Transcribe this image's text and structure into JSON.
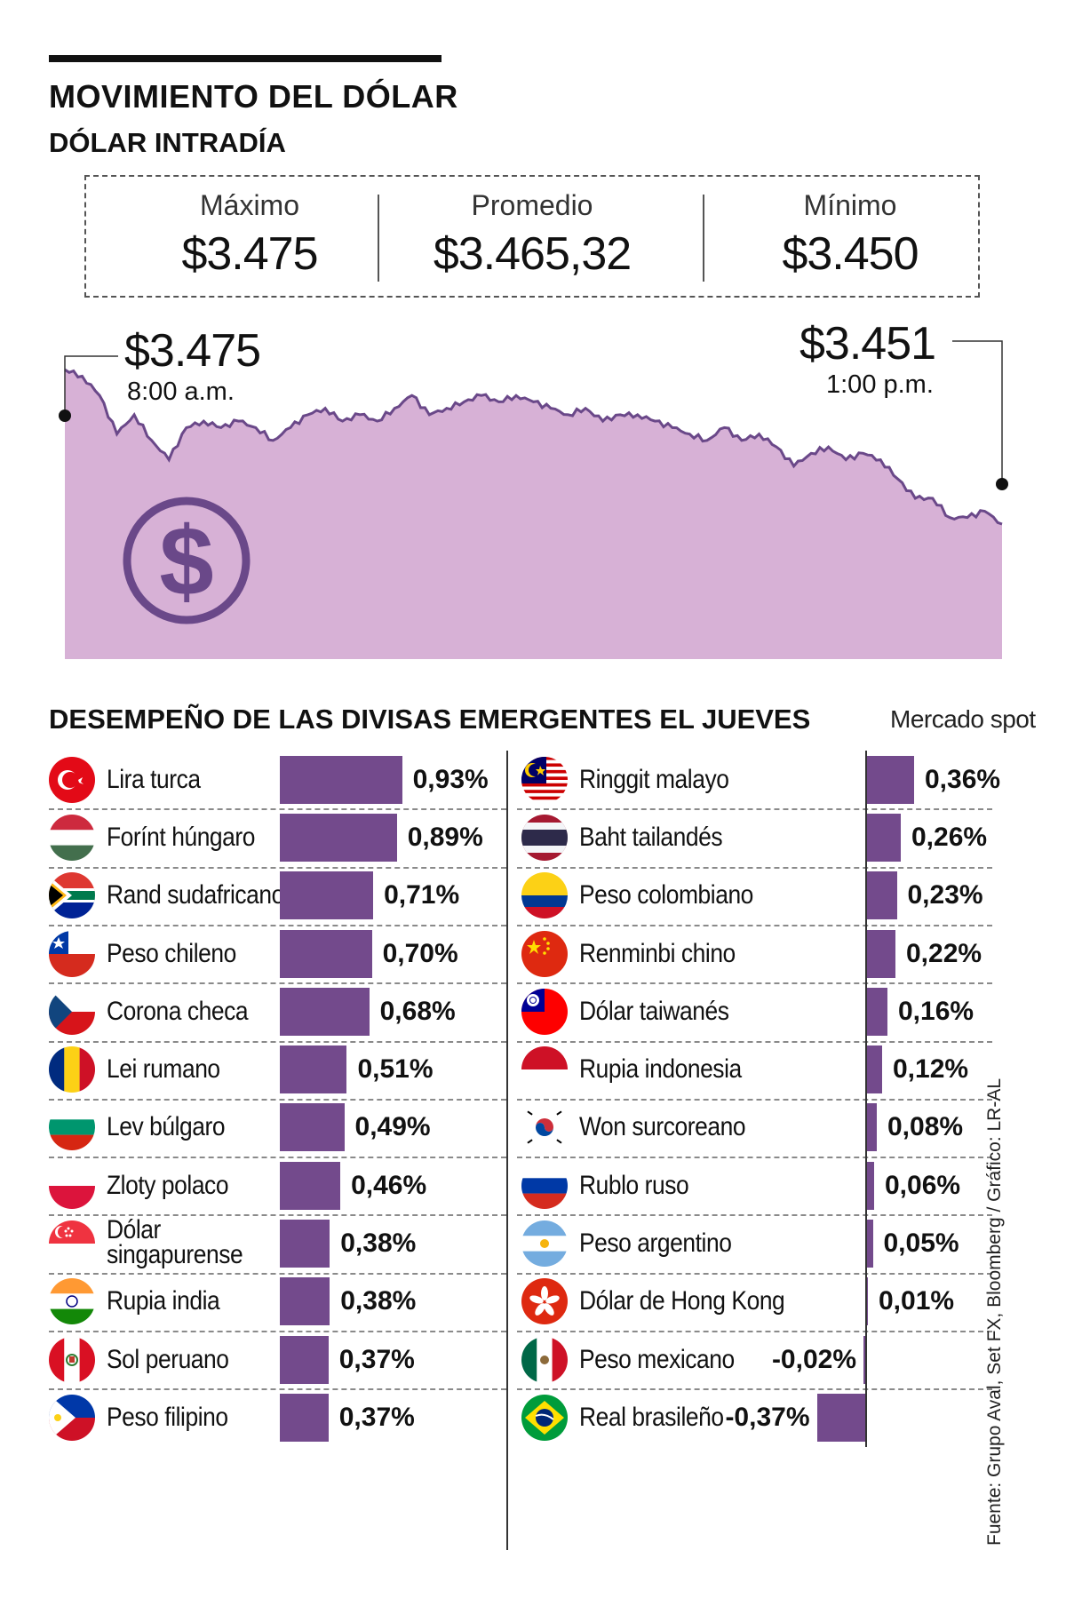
{
  "header": {
    "title": "MOVIMIENTO DEL DÓLAR",
    "subtitle": "DÓLAR INTRADÍA"
  },
  "stats": [
    {
      "label": "Máximo",
      "value": "$3.475"
    },
    {
      "label": "Promedio",
      "value": "$3.465,32"
    },
    {
      "label": "Mínimo",
      "value": "$3.450"
    }
  ],
  "colors": {
    "area_fill": "#d7b1d6",
    "line": "#6a4889",
    "bar": "#734a8c",
    "icon": "#6a4889"
  },
  "icons": {
    "chart_icon": "dollar-coin-icon"
  },
  "chart_data": [
    {
      "type": "area",
      "title": "DÓLAR INTRADÍA",
      "x_start": "8:00 a.m.",
      "x_end": "1:00 p.m.",
      "ylim": [
        3430,
        3480
      ],
      "values": [
        3475,
        3474,
        3471,
        3465,
        3468,
        3464,
        3461,
        3466,
        3467,
        3466,
        3467,
        3466,
        3464,
        3466,
        3468,
        3469,
        3467,
        3468,
        3467,
        3469,
        3471,
        3468,
        3469,
        3470,
        3471,
        3470,
        3471,
        3470,
        3469,
        3468,
        3469,
        3467,
        3468,
        3468,
        3467,
        3466,
        3465,
        3464,
        3466,
        3464,
        3465,
        3463,
        3460,
        3462,
        3463,
        3461,
        3462,
        3461,
        3458,
        3455,
        3455,
        3452,
        3452,
        3453,
        3451
      ],
      "annotations": [
        {
          "label": "$3.475",
          "time": "8:00 a.m."
        },
        {
          "label": "$3.451",
          "time": "1:00 p.m."
        }
      ]
    },
    {
      "type": "bar",
      "title": "DESEMPEÑO DE LAS DIVISAS EMERGENTES EL JUEVES",
      "subtitle": "Mercado spot",
      "unit": "%",
      "columns": [
        {
          "items": [
            {
              "name": "Lira turca",
              "value": 0.93,
              "label": "0,93%",
              "flag": "turkey-flag-icon"
            },
            {
              "name": "Forínt húngaro",
              "value": 0.89,
              "label": "0,89%",
              "flag": "hungary-flag-icon"
            },
            {
              "name": "Rand sudafricano",
              "value": 0.71,
              "label": "0,71%",
              "flag": "south-africa-flag-icon"
            },
            {
              "name": "Peso chileno",
              "value": 0.7,
              "label": "0,70%",
              "flag": "chile-flag-icon"
            },
            {
              "name": "Corona checa",
              "value": 0.68,
              "label": "0,68%",
              "flag": "czech-flag-icon"
            },
            {
              "name": "Lei rumano",
              "value": 0.51,
              "label": "0,51%",
              "flag": "romania-flag-icon"
            },
            {
              "name": "Lev búlgaro",
              "value": 0.49,
              "label": "0,49%",
              "flag": "bulgaria-flag-icon"
            },
            {
              "name": "Zloty polaco",
              "value": 0.46,
              "label": "0,46%",
              "flag": "poland-flag-icon"
            },
            {
              "name": "Dólar singapurense",
              "name_lines": [
                "Dólar",
                "singapurense"
              ],
              "value": 0.38,
              "label": "0,38%",
              "flag": "singapore-flag-icon"
            },
            {
              "name": "Rupia india",
              "value": 0.38,
              "label": "0,38%",
              "flag": "india-flag-icon"
            },
            {
              "name": "Sol peruano",
              "value": 0.37,
              "label": "0,37%",
              "flag": "peru-flag-icon"
            },
            {
              "name": "Peso filipino",
              "value": 0.37,
              "label": "0,37%",
              "flag": "philippines-flag-icon"
            }
          ]
        },
        {
          "items": [
            {
              "name": "Ringgit malayo",
              "value": 0.36,
              "label": "0,36%",
              "flag": "malaysia-flag-icon"
            },
            {
              "name": "Baht tailandés",
              "value": 0.26,
              "label": "0,26%",
              "flag": "thailand-flag-icon"
            },
            {
              "name": "Peso colombiano",
              "value": 0.23,
              "label": "0,23%",
              "flag": "colombia-flag-icon"
            },
            {
              "name": "Renminbi chino",
              "value": 0.22,
              "label": "0,22%",
              "flag": "china-flag-icon"
            },
            {
              "name": "Dólar taiwanés",
              "value": 0.16,
              "label": "0,16%",
              "flag": "taiwan-flag-icon"
            },
            {
              "name": "Rupia indonesia",
              "value": 0.12,
              "label": "0,12%",
              "flag": "indonesia-flag-icon"
            },
            {
              "name": "Won surcoreano",
              "value": 0.08,
              "label": "0,08%",
              "flag": "south-korea-flag-icon"
            },
            {
              "name": "Rublo ruso",
              "value": 0.06,
              "label": "0,06%",
              "flag": "russia-flag-icon"
            },
            {
              "name": "Peso argentino",
              "value": 0.05,
              "label": "0,05%",
              "flag": "argentina-flag-icon"
            },
            {
              "name": "Dólar de Hong Kong",
              "value": 0.01,
              "label": "0,01%",
              "flag": "hong-kong-flag-icon"
            },
            {
              "name": "Peso mexicano",
              "value": -0.02,
              "label": "-0,02%",
              "flag": "mexico-flag-icon"
            },
            {
              "name": "Real brasileño",
              "value": -0.37,
              "label": "-0,37%",
              "flag": "brazil-flag-icon"
            }
          ]
        }
      ]
    }
  ],
  "footer": {
    "source": "Fuente: Grupo Aval, Set FX, Bloomberg / Gráfico: LR-AL"
  }
}
